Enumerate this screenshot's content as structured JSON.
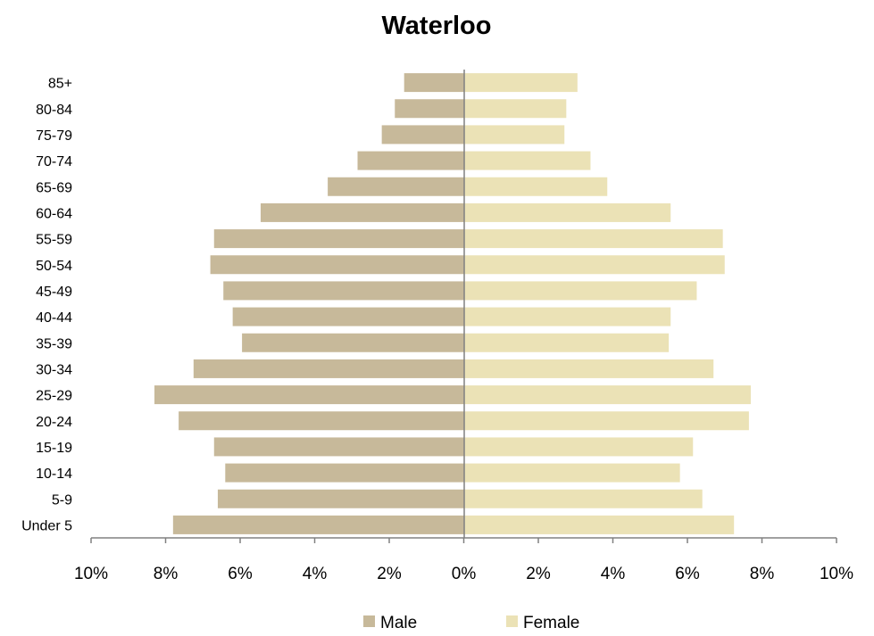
{
  "chart_data": {
    "type": "bar",
    "orientation": "horizontal",
    "title": "Waterloo",
    "categories": [
      "85+",
      "80-84",
      "75-79",
      "70-74",
      "65-69",
      "60-64",
      "55-59",
      "50-54",
      "45-49",
      "40-44",
      "35-39",
      "30-34",
      "25-29",
      "20-24",
      "15-19",
      "10-14",
      "5-9",
      "Under 5"
    ],
    "series": [
      {
        "name": "Male",
        "color": "#c7b99a",
        "values": [
          1.6,
          1.85,
          2.2,
          2.85,
          3.65,
          5.45,
          6.7,
          6.8,
          6.45,
          6.2,
          5.95,
          7.25,
          8.3,
          7.65,
          6.7,
          6.4,
          6.6,
          7.8
        ]
      },
      {
        "name": "Female",
        "color": "#ebe2b6",
        "values": [
          3.05,
          2.75,
          2.7,
          3.4,
          3.85,
          5.55,
          6.95,
          7.0,
          6.25,
          5.55,
          5.5,
          6.7,
          7.7,
          7.65,
          6.15,
          5.8,
          6.4,
          7.25
        ]
      }
    ],
    "xlim": [
      -10,
      10
    ],
    "xticks": [
      -10,
      -8,
      -6,
      -4,
      -2,
      0,
      2,
      4,
      6,
      8,
      10
    ],
    "xtick_labels": [
      "10%",
      "8%",
      "6%",
      "4%",
      "2%",
      "0%",
      "2%",
      "4%",
      "6%",
      "8%",
      "10%"
    ],
    "xlabel": "",
    "ylabel": "",
    "grid": false,
    "legend": {
      "position": "bottom",
      "entries": [
        "Male",
        "Female"
      ]
    }
  }
}
